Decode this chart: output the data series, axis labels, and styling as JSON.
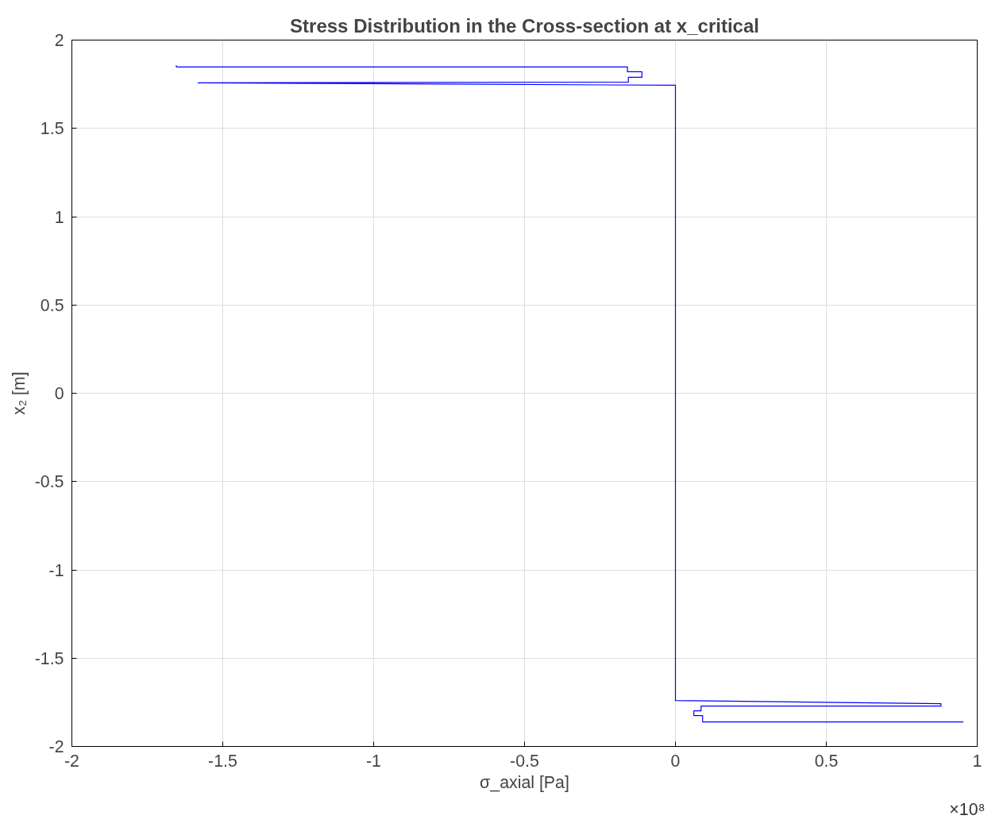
{
  "chart_data": {
    "type": "line",
    "title": "Stress Distribution in the Cross-section at x_critical",
    "xlabel": "σ_axial [Pa]",
    "ylabel": "x₂ [m]",
    "annotations": [
      "×10⁸"
    ],
    "series": [
      {
        "color": "#0000ff",
        "x": [
          -1.654,
          -1.654,
          -0.159,
          -0.159,
          -0.111,
          -0.111,
          -0.156,
          -0.156,
          -1.582,
          0,
          0,
          0.88,
          0.88,
          0.085,
          0.085,
          0.061,
          0.061,
          0.09,
          0.09,
          0.954
        ],
        "values": [
          1.857,
          1.848,
          1.848,
          1.821,
          1.821,
          1.789,
          1.789,
          1.762,
          1.758,
          1.744,
          -1.74,
          -1.758,
          -1.771,
          -1.771,
          -1.798,
          -1.798,
          -1.825,
          -1.825,
          -1.861,
          -1.861
        ]
      }
    ],
    "xlim": [
      -2,
      1
    ],
    "ylim": [
      -2,
      2
    ],
    "xticks": [
      -2,
      -1.5,
      -1,
      -0.5,
      0,
      0.5,
      1
    ],
    "yticks": [
      -2,
      -1.5,
      -1,
      -0.5,
      0,
      0.5,
      1,
      1.5,
      2
    ],
    "grid": true,
    "marker": "none",
    "line_style": "solid"
  }
}
